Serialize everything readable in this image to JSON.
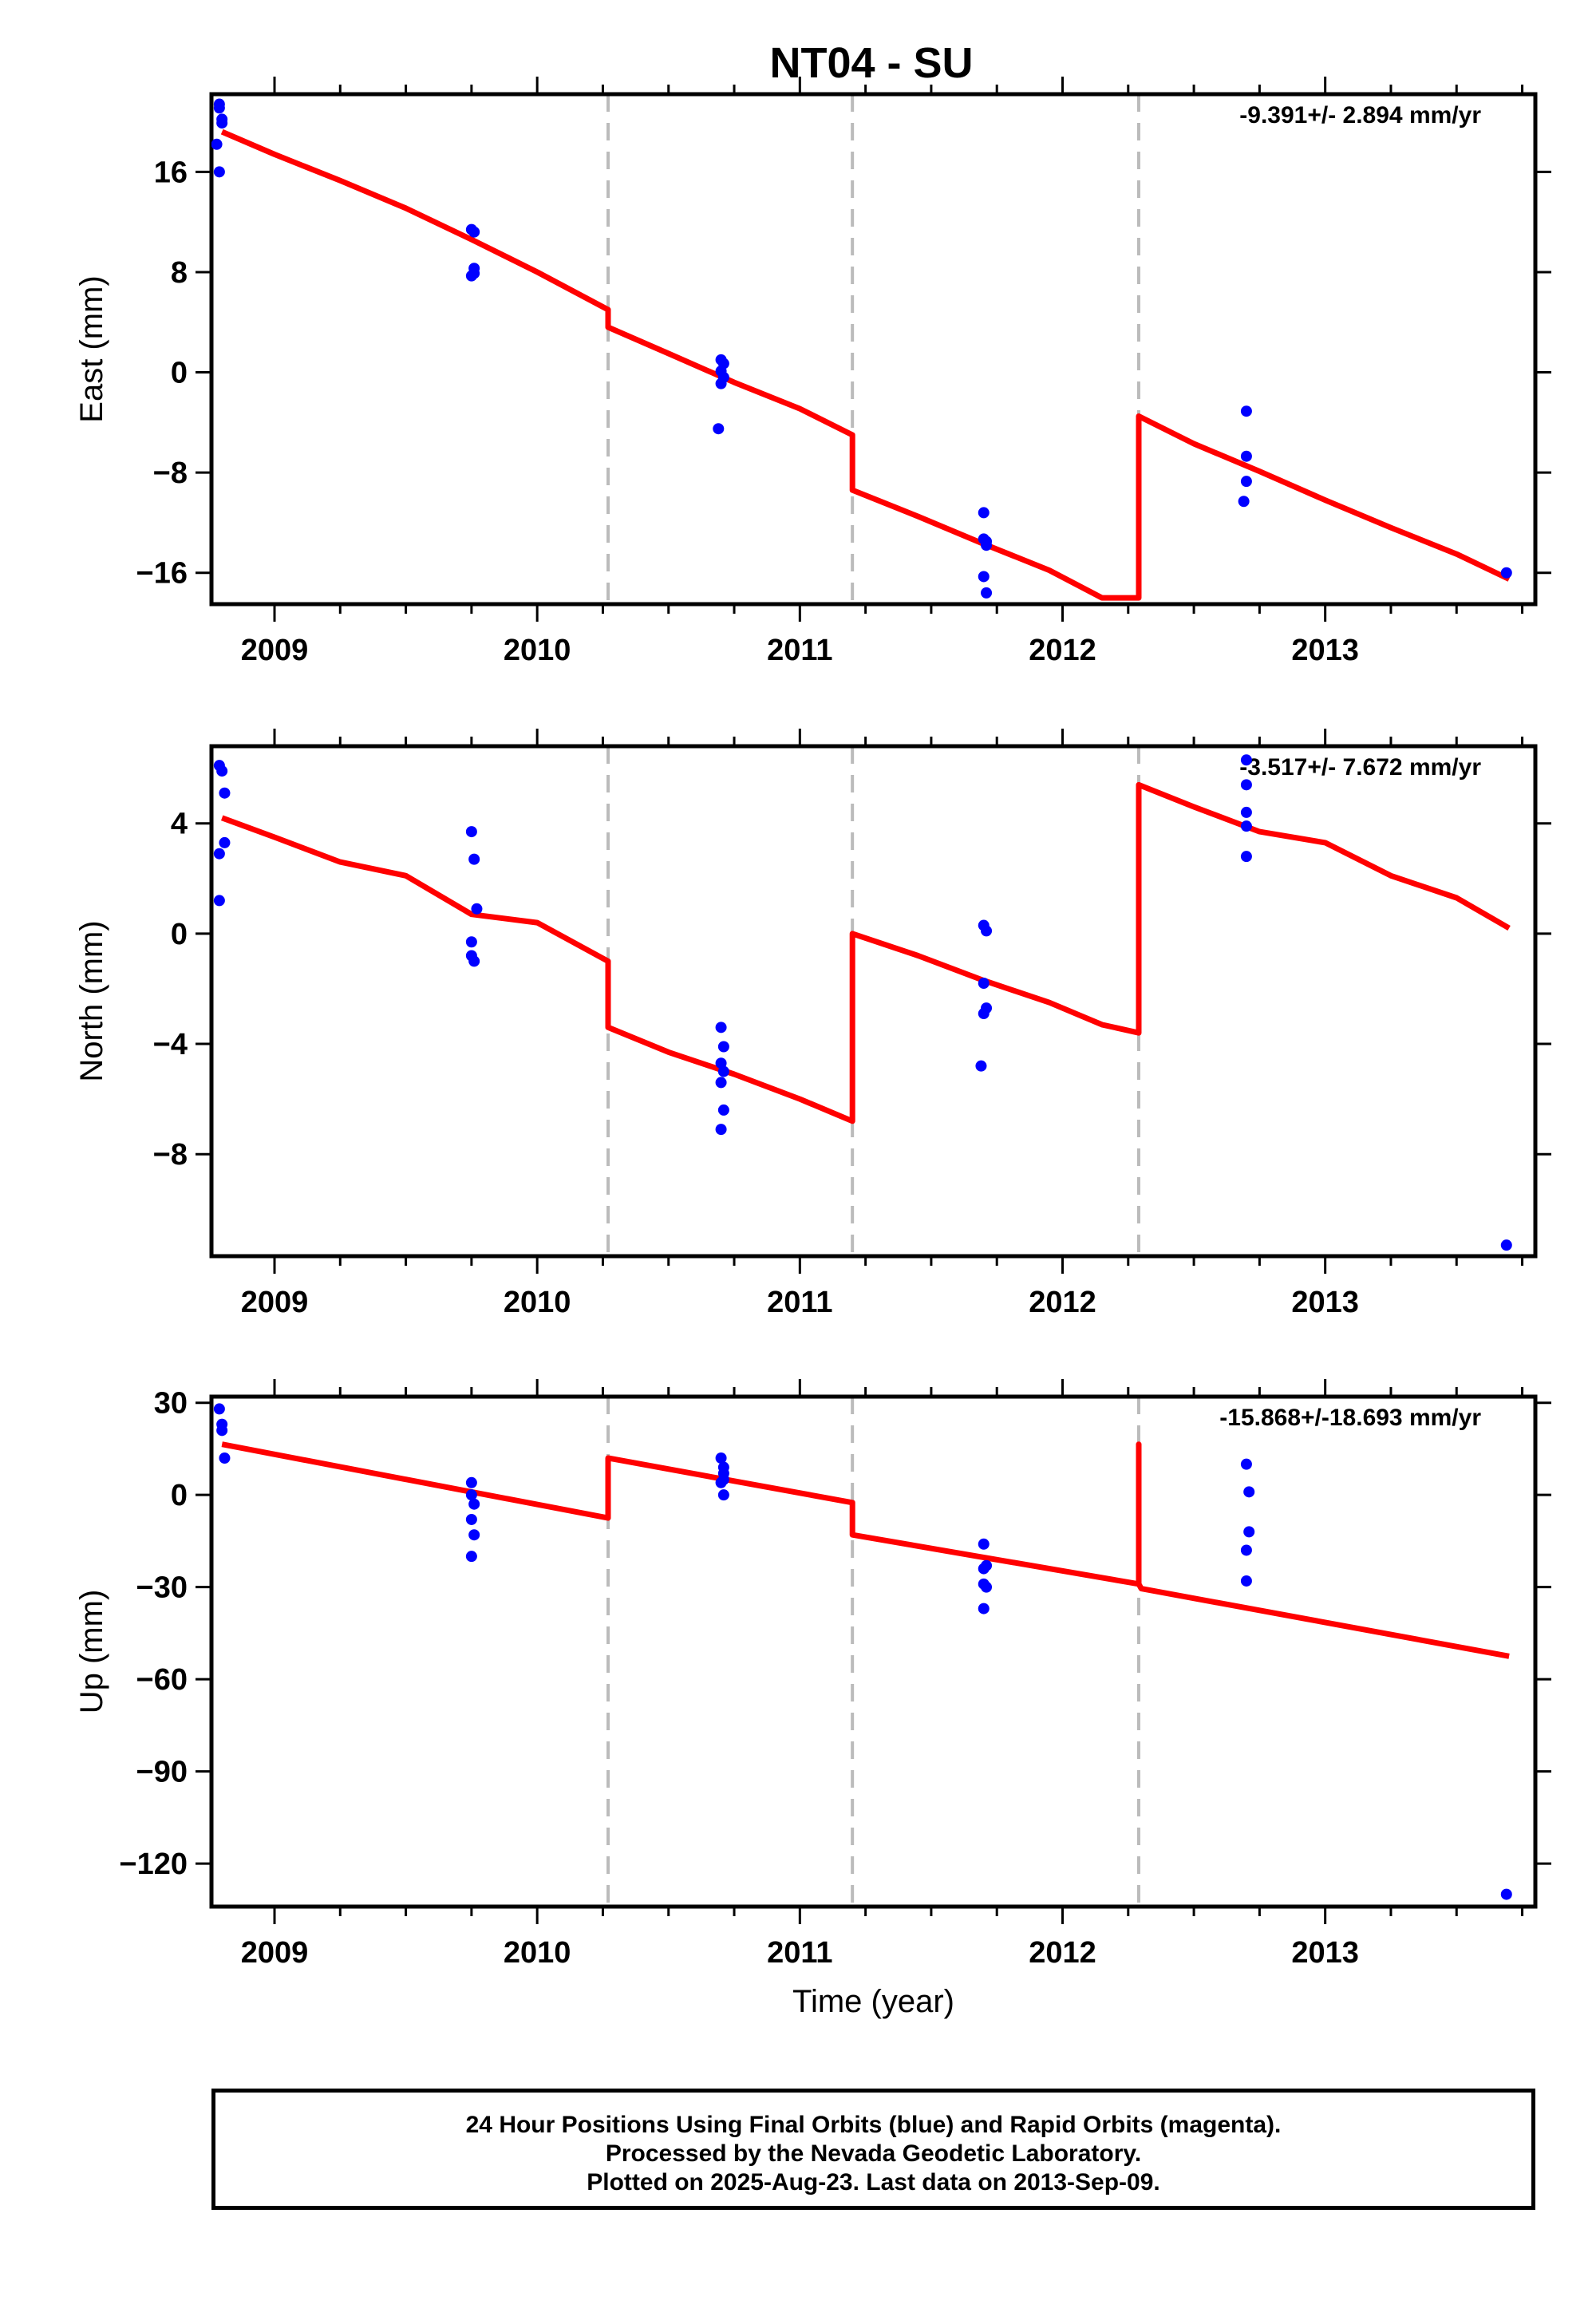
{
  "title": "NT04 - SU",
  "colors": {
    "final_orbits": "#0000ff",
    "model_fit": "#ff0000",
    "offsets": "#bbbbbb",
    "axes": "#000000"
  },
  "caption": {
    "line1": "24 Hour Positions Using Final Orbits (blue) and Rapid Orbits (magenta).",
    "line2": "Processed by the Nevada Geodetic Laboratory.",
    "line3": "Plotted on 2025-Aug-23. Last data on 2013-Sep-09."
  },
  "chart_data": [
    {
      "type": "scatter",
      "ylabel": "East (mm)",
      "xlabel": "",
      "rate_label": "-9.391+/- 2.894 mm/yr",
      "xlim": [
        2008.76,
        2013.8
      ],
      "ylim": [
        -18.5,
        22.2
      ],
      "xticks": [
        2009,
        2010,
        2011,
        2012,
        2013
      ],
      "yticks": [
        -16,
        -8,
        0,
        8,
        16
      ],
      "ytick_labels": [
        "−16",
        "−8",
        "0",
        "8",
        "16"
      ],
      "offsets": [
        2010.27,
        2011.2,
        2012.29
      ],
      "series": [
        {
          "role": "observations",
          "x": [
            2008.79,
            2008.79,
            2008.8,
            2008.8,
            2008.78,
            2008.79,
            2009.75,
            2009.76,
            2009.76,
            2009.76,
            2009.75,
            2010.7,
            2010.71,
            2010.7,
            2010.71,
            2010.7,
            2010.69,
            2011.7,
            2011.71,
            2011.71,
            2011.7,
            2011.71,
            2011.7,
            2012.7,
            2012.7,
            2012.7,
            2012.69,
            2013.69
          ],
          "y": [
            21.4,
            21.1,
            20.2,
            19.9,
            18.2,
            16.0,
            11.4,
            11.2,
            8.3,
            7.9,
            7.7,
            1.0,
            0.7,
            0.1,
            -0.4,
            -0.9,
            -4.5,
            -11.2,
            -13.5,
            -13.8,
            -16.3,
            -17.6,
            -13.3,
            -3.1,
            -6.7,
            -8.7,
            -10.3,
            -16.0
          ]
        },
        {
          "role": "model",
          "x": [
            2008.8,
            2009.0,
            2009.25,
            2009.5,
            2009.75,
            2010.0,
            2010.27,
            2010.27,
            2010.5,
            2010.75,
            2011.0,
            2011.2,
            2011.2,
            2011.45,
            2011.7,
            2011.95,
            2012.15,
            2012.29,
            2012.29,
            2012.5,
            2012.75,
            2013.0,
            2013.25,
            2013.5,
            2013.7
          ],
          "y": [
            19.2,
            17.4,
            15.3,
            13.1,
            10.6,
            8.0,
            5.0,
            3.6,
            1.5,
            -0.8,
            -2.9,
            -5.0,
            -9.4,
            -11.5,
            -13.7,
            -15.8,
            -18.0,
            -18.0,
            -3.5,
            -5.7,
            -7.9,
            -10.2,
            -12.4,
            -14.5,
            -16.5
          ]
        }
      ]
    },
    {
      "type": "scatter",
      "ylabel": "North (mm)",
      "xlabel": "",
      "rate_label": "-3.517+/- 7.672 mm/yr",
      "xlim": [
        2008.76,
        2013.8
      ],
      "ylim": [
        -11.7,
        6.8
      ],
      "xticks": [
        2009,
        2010,
        2011,
        2012,
        2013
      ],
      "yticks": [
        -8,
        -4,
        0,
        4
      ],
      "ytick_labels": [
        "−8",
        "−4",
        "0",
        "4"
      ],
      "offsets": [
        2010.27,
        2011.2,
        2012.29
      ],
      "series": [
        {
          "role": "observations",
          "x": [
            2008.79,
            2008.8,
            2008.81,
            2008.81,
            2008.79,
            2008.79,
            2009.75,
            2009.76,
            2009.77,
            2009.75,
            2009.75,
            2009.76,
            2010.7,
            2010.71,
            2010.7,
            2010.71,
            2010.7,
            2010.71,
            2010.7,
            2011.7,
            2011.71,
            2011.7,
            2011.71,
            2011.7,
            2011.69,
            2012.7,
            2012.7,
            2012.7,
            2012.7,
            2012.7,
            2013.69
          ],
          "y": [
            6.1,
            5.9,
            5.1,
            3.3,
            2.9,
            1.2,
            3.7,
            2.7,
            0.9,
            -0.3,
            -0.8,
            -1.0,
            -3.4,
            -4.1,
            -4.7,
            -5.0,
            -5.4,
            -6.4,
            -7.1,
            0.3,
            0.1,
            -1.8,
            -2.7,
            -2.9,
            -4.8,
            6.3,
            5.4,
            4.4,
            3.9,
            2.8,
            -11.3
          ]
        },
        {
          "role": "model",
          "x": [
            2008.8,
            2009.0,
            2009.25,
            2009.5,
            2009.75,
            2010.0,
            2010.27,
            2010.27,
            2010.5,
            2010.75,
            2011.0,
            2011.2,
            2011.2,
            2011.45,
            2011.7,
            2011.95,
            2012.15,
            2012.29,
            2012.29,
            2012.5,
            2012.75,
            2013.0,
            2013.25,
            2013.5,
            2013.7
          ],
          "y": [
            4.2,
            3.5,
            2.6,
            2.1,
            0.7,
            0.4,
            -1.0,
            -3.4,
            -4.3,
            -5.1,
            -6.0,
            -6.8,
            0.0,
            -0.8,
            -1.7,
            -2.5,
            -3.3,
            -3.6,
            5.4,
            4.6,
            3.7,
            3.3,
            2.1,
            1.3,
            0.2
          ]
        }
      ]
    },
    {
      "type": "scatter",
      "ylabel": "Up (mm)",
      "xlabel": "Time (year)",
      "rate_label": "-15.868+/-18.693 mm/yr",
      "xlim": [
        2008.76,
        2013.8
      ],
      "ylim": [
        -134.0,
        32.0
      ],
      "xticks": [
        2009,
        2010,
        2011,
        2012,
        2013
      ],
      "yticks": [
        -120,
        -90,
        -60,
        -30,
        0,
        30
      ],
      "ytick_labels": [
        "−120",
        "−90",
        "−60",
        "−30",
        "0",
        "30"
      ],
      "offsets": [
        2010.27,
        2011.2,
        2012.29
      ],
      "series": [
        {
          "role": "observations",
          "x": [
            2008.79,
            2008.8,
            2008.8,
            2008.81,
            2009.75,
            2009.75,
            2009.76,
            2009.75,
            2009.76,
            2009.75,
            2010.7,
            2010.71,
            2010.71,
            2010.7,
            2010.71,
            2010.71,
            2011.7,
            2011.71,
            2011.7,
            2011.7,
            2011.71,
            2011.7,
            2012.7,
            2012.71,
            2012.71,
            2012.7,
            2012.7,
            2013.69
          ],
          "y": [
            28.0,
            23.0,
            21.0,
            12.0,
            4.0,
            0.0,
            -3.0,
            -8.0,
            -13.0,
            -20.0,
            12.0,
            9.0,
            7.0,
            4.0,
            5.0,
            0.0,
            -16.0,
            -23.0,
            -24.0,
            -29.0,
            -30.0,
            -37.0,
            10.0,
            1.0,
            -12.0,
            -18.0,
            -28.0,
            -130.0
          ]
        },
        {
          "role": "model",
          "x": [
            2008.8,
            2010.27,
            2010.27,
            2011.2,
            2011.2,
            2012.29,
            2012.29,
            2012.29,
            2012.3,
            2013.7
          ],
          "y": [
            16.5,
            -7.5,
            12.0,
            -2.5,
            -13.0,
            -29.0,
            16.5,
            -29.0,
            -30.5,
            -52.5
          ]
        }
      ]
    }
  ]
}
